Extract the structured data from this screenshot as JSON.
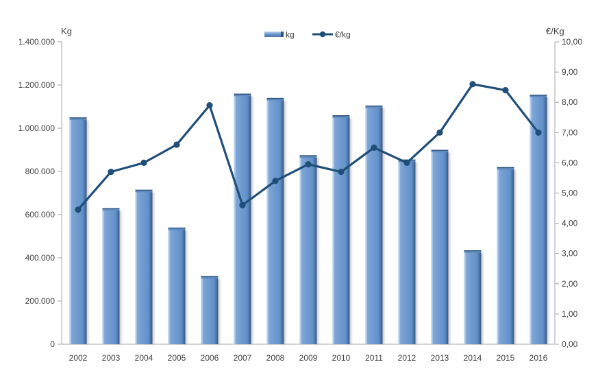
{
  "page": {
    "background": "#ffffff"
  },
  "chart_data": {
    "type": "combo",
    "title": "",
    "categories": [
      "2002",
      "2003",
      "2004",
      "2005",
      "2006",
      "2007",
      "2008",
      "2009",
      "2010",
      "2011",
      "2012",
      "2013",
      "2014",
      "2015",
      "2016"
    ],
    "series": [
      {
        "name": "kg",
        "type": "bar",
        "axis": "left",
        "color": "#6D99CF",
        "values": [
          1050000,
          630000,
          715000,
          540000,
          315000,
          1160000,
          1140000,
          875000,
          1060000,
          1105000,
          855000,
          900000,
          435000,
          820000,
          1155000
        ]
      },
      {
        "name": "€/kg",
        "type": "line",
        "axis": "right",
        "color": "#1F4E79",
        "values": [
          4.45,
          5.7,
          6.0,
          6.6,
          7.9,
          4.6,
          5.4,
          5.95,
          5.7,
          6.5,
          6.0,
          7.0,
          8.6,
          8.4,
          7.0
        ]
      }
    ],
    "left_axis": {
      "title": "Kg",
      "min": 0,
      "max": 1400000,
      "step": 200000,
      "tick_labels": [
        "1.400.000",
        "1.200.000",
        "1.000.000",
        "800.000",
        "600.000",
        "400.000",
        "200.000",
        "0"
      ]
    },
    "right_axis": {
      "title": "€/Kg",
      "min": 0,
      "max": 10,
      "step": 1,
      "tick_labels": [
        "10,00",
        "9,00",
        "8,00",
        "7,00",
        "6,00",
        "5,00",
        "4,00",
        "3,00",
        "2,00",
        "1,00",
        "0,00"
      ]
    },
    "legend": {
      "position": "top",
      "items": [
        "kg",
        "€/kg"
      ]
    },
    "grid": false
  },
  "colors": {
    "bar_main": "#6D99CF",
    "bar_light": "#B9D2EC",
    "bar_dark": "#33547F",
    "bar_cap": "#5F89BD",
    "bar_top_edge": "#2E527F",
    "line": "#1F4E79",
    "axis_line": "#A6A6A6",
    "text": "#404040",
    "shadow": "#ABABAB"
  }
}
